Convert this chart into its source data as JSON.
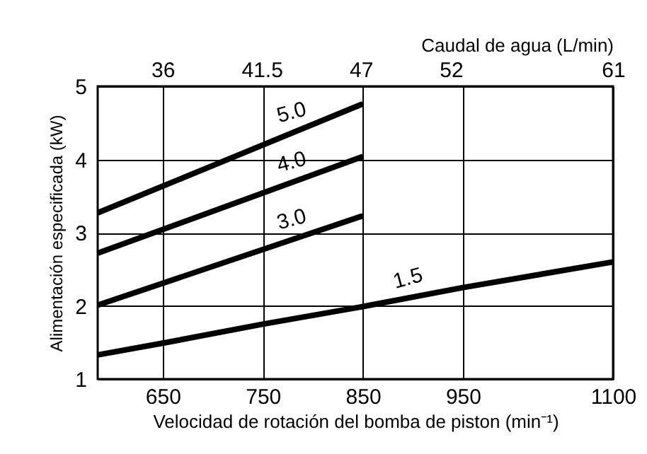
{
  "chart_data": {
    "type": "line",
    "xlabel": "Velocidad de rotación del bomba de piston (min⁻¹)",
    "ylabel": "Alimentación especificada (kW)",
    "x2label": "Caudal de agua (L/min)",
    "xlim": [
      585,
      1100
    ],
    "xticks": [
      650,
      750,
      850,
      950,
      1100
    ],
    "ylim": [
      1,
      5
    ],
    "yticks": [
      1,
      2,
      3,
      4,
      5
    ],
    "x2lim": [
      32.4,
      61
    ],
    "x2ticks": [
      36,
      41.5,
      47,
      52,
      61
    ],
    "grid": true,
    "legend": false,
    "series": [
      {
        "name": "5.0",
        "color": "#000000",
        "x": [
          585,
          850
        ],
        "values": [
          3.27,
          4.76
        ]
      },
      {
        "name": "4.0",
        "color": "#000000",
        "x": [
          585,
          850
        ],
        "values": [
          2.72,
          4.04
        ]
      },
      {
        "name": "3.0",
        "color": "#000000",
        "x": [
          585,
          850
        ],
        "values": [
          2.01,
          3.23
        ]
      },
      {
        "name": "1.5",
        "color": "#000000",
        "x": [
          585,
          650,
          750,
          850,
          950,
          1100
        ],
        "values": [
          1.33,
          1.49,
          1.75,
          1.99,
          2.25,
          2.6
        ]
      }
    ]
  }
}
